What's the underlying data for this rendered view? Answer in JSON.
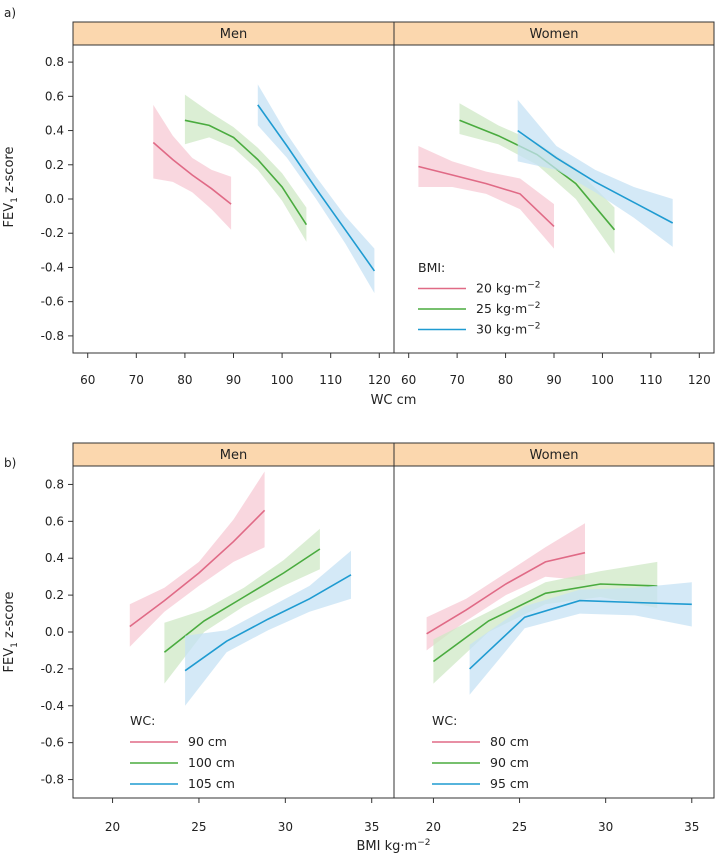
{
  "colors": {
    "strip_bg": "#fbd7ae",
    "pink": "#e06a86",
    "green": "#4aab3f",
    "blue": "#1f9bd1",
    "pink_band": "#f7c9d4",
    "green_band": "#cfe8c6",
    "blue_band": "#c6e2f4"
  },
  "y_axis_label": {
    "main": "FEV",
    "sub": "1",
    "rest": " z-score"
  },
  "chart_data": [
    {
      "type": "line",
      "panel_label": "a)",
      "xlabel": "WC cm",
      "ylim": [
        -0.9,
        0.9
      ],
      "yticks": [
        "0.8",
        "0.6",
        "0.4",
        "0.2",
        "0.0",
        "-0.2",
        "-0.4",
        "-0.6",
        "-0.8"
      ],
      "ytick_values": [
        0.8,
        0.6,
        0.4,
        0.2,
        0.0,
        -0.2,
        -0.4,
        -0.6,
        -0.8
      ],
      "legend": {
        "title": "BMI:",
        "placement": "bottom-left of Women facet",
        "facet": 1
      },
      "facets": [
        {
          "strip": "Men",
          "xlim": [
            58,
            122
          ],
          "xticks": [
            "60",
            "70",
            "80",
            "90",
            "100",
            "110",
            "120"
          ],
          "xtick_values": [
            60,
            70,
            80,
            90,
            100,
            110,
            120
          ],
          "series": [
            {
              "name": "20 kg·m−2",
              "color": "pink",
              "x": [
                73.5,
                77.5,
                81.5,
                85.5,
                89.5
              ],
              "y": [
                0.33,
                0.23,
                0.14,
                0.06,
                -0.03
              ],
              "lower": [
                0.12,
                0.1,
                0.04,
                -0.06,
                -0.18
              ],
              "upper": [
                0.55,
                0.37,
                0.24,
                0.17,
                0.13
              ]
            },
            {
              "name": "25 kg·m−2",
              "color": "green",
              "x": [
                80,
                85,
                90,
                95,
                100,
                105
              ],
              "y": [
                0.46,
                0.43,
                0.36,
                0.23,
                0.07,
                -0.15
              ],
              "lower": [
                0.32,
                0.36,
                0.3,
                0.17,
                -0.01,
                -0.25
              ],
              "upper": [
                0.61,
                0.51,
                0.42,
                0.3,
                0.15,
                -0.05
              ]
            },
            {
              "name": "30 kg·m−2",
              "color": "blue",
              "x": [
                95,
                101,
                107,
                113,
                119
              ],
              "y": [
                0.55,
                0.31,
                0.06,
                -0.18,
                -0.42
              ],
              "lower": [
                0.43,
                0.24,
                0.0,
                -0.26,
                -0.55
              ],
              "upper": [
                0.67,
                0.38,
                0.13,
                -0.1,
                -0.29
              ]
            }
          ]
        },
        {
          "strip": "Women",
          "xlim": [
            58,
            122
          ],
          "xticks": [
            "60",
            "70",
            "80",
            "90",
            "100",
            "110",
            "120"
          ],
          "xtick_values": [
            60,
            70,
            80,
            90,
            100,
            110,
            120
          ],
          "series": [
            {
              "name": "20 kg·m−2",
              "color": "pink",
              "x": [
                62,
                69,
                76,
                83,
                90
              ],
              "y": [
                0.19,
                0.14,
                0.09,
                0.03,
                -0.16
              ],
              "lower": [
                0.07,
                0.07,
                0.03,
                -0.06,
                -0.29
              ],
              "upper": [
                0.31,
                0.22,
                0.16,
                0.12,
                -0.03
              ]
            },
            {
              "name": "25 kg·m−2",
              "color": "green",
              "x": [
                70.5,
                78.5,
                86.5,
                94.5,
                102.5
              ],
              "y": [
                0.46,
                0.37,
                0.26,
                0.09,
                -0.18
              ],
              "lower": [
                0.38,
                0.32,
                0.2,
                0.0,
                -0.32
              ],
              "upper": [
                0.56,
                0.43,
                0.33,
                0.18,
                -0.05
              ]
            },
            {
              "name": "30 kg·m−2",
              "color": "blue",
              "x": [
                82.5,
                90.5,
                98.5,
                106.5,
                114.5
              ],
              "y": [
                0.4,
                0.24,
                0.1,
                -0.02,
                -0.14
              ],
              "lower": [
                0.22,
                0.17,
                0.04,
                -0.11,
                -0.28
              ],
              "upper": [
                0.58,
                0.31,
                0.17,
                0.07,
                0.0
              ]
            }
          ]
        }
      ]
    },
    {
      "type": "line",
      "panel_label": "b)",
      "xlabel": "BMI kg·m",
      "xlabel_sup": "−2",
      "ylim": [
        -0.9,
        0.9
      ],
      "yticks": [
        "0.8",
        "0.6",
        "0.4",
        "0.2",
        "0.0",
        "-0.2",
        "-0.4",
        "-0.6",
        "-0.8"
      ],
      "ytick_values": [
        0.8,
        0.6,
        0.4,
        0.2,
        0.0,
        -0.2,
        -0.4,
        -0.6,
        -0.8
      ],
      "legend_title": "WC:",
      "facets": [
        {
          "strip": "Men",
          "xlim": [
            18,
            36
          ],
          "xticks": [
            "20",
            "25",
            "30",
            "35"
          ],
          "xtick_values": [
            20,
            25,
            30,
            35
          ],
          "legend": {
            "title": "WC:",
            "placement": "bottom-left",
            "items": [
              "90 cm",
              "100 cm",
              "105 cm"
            ]
          },
          "series": [
            {
              "name": "90 cm",
              "color": "pink",
              "x": [
                21,
                23,
                25,
                27,
                28.8
              ],
              "y": [
                0.03,
                0.17,
                0.32,
                0.49,
                0.66
              ],
              "lower": [
                -0.08,
                0.11,
                0.25,
                0.38,
                0.46
              ],
              "upper": [
                0.15,
                0.24,
                0.38,
                0.61,
                0.87
              ]
            },
            {
              "name": "100 cm",
              "color": "green",
              "x": [
                23,
                25.3,
                27.6,
                29.9,
                32
              ],
              "y": [
                -0.11,
                0.06,
                0.19,
                0.32,
                0.45
              ],
              "lower": [
                -0.28,
                0.0,
                0.14,
                0.25,
                0.34
              ],
              "upper": [
                0.05,
                0.12,
                0.24,
                0.39,
                0.56
              ]
            },
            {
              "name": "105 cm",
              "color": "blue",
              "x": [
                24.2,
                26.6,
                29.0,
                31.4,
                33.8
              ],
              "y": [
                -0.21,
                -0.05,
                0.07,
                0.18,
                0.31
              ],
              "lower": [
                -0.4,
                -0.11,
                0.01,
                0.11,
                0.18
              ],
              "upper": [
                -0.02,
                0.01,
                0.13,
                0.25,
                0.44
              ]
            }
          ]
        },
        {
          "strip": "Women",
          "xlim": [
            18,
            36
          ],
          "xticks": [
            "20",
            "25",
            "30",
            "35"
          ],
          "xtick_values": [
            20,
            25,
            30,
            35
          ],
          "legend": {
            "title": "WC:",
            "placement": "bottom-left",
            "items": [
              "80 cm",
              "90 cm",
              "95 cm"
            ]
          },
          "series": [
            {
              "name": "80 cm",
              "color": "pink",
              "x": [
                19.6,
                21.9,
                24.2,
                26.5,
                28.8
              ],
              "y": [
                -0.01,
                0.12,
                0.26,
                0.38,
                0.43
              ],
              "lower": [
                -0.1,
                0.06,
                0.2,
                0.3,
                0.28
              ],
              "upper": [
                0.08,
                0.18,
                0.32,
                0.46,
                0.59
              ]
            },
            {
              "name": "90 cm",
              "color": "green",
              "x": [
                20,
                23.2,
                26.5,
                29.7,
                33
              ],
              "y": [
                -0.16,
                0.06,
                0.21,
                0.26,
                0.25
              ],
              "lower": [
                -0.28,
                0.0,
                0.15,
                0.19,
                0.13
              ],
              "upper": [
                -0.04,
                0.11,
                0.27,
                0.33,
                0.38
              ]
            },
            {
              "name": "95 cm",
              "color": "blue",
              "x": [
                22.1,
                25.3,
                28.5,
                31.7,
                35
              ],
              "y": [
                -0.2,
                0.08,
                0.17,
                0.16,
                0.15
              ],
              "lower": [
                -0.34,
                0.02,
                0.1,
                0.09,
                0.03
              ],
              "upper": [
                -0.07,
                0.14,
                0.23,
                0.24,
                0.27
              ]
            }
          ]
        }
      ]
    }
  ]
}
